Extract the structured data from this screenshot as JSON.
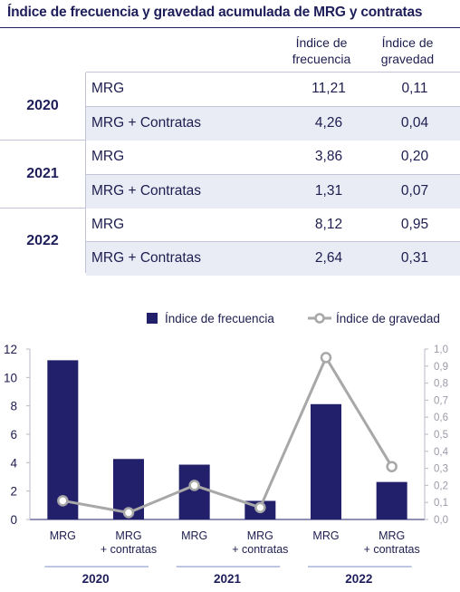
{
  "title": "Índice de frecuencia y gravedad acumulada de MRG y contratas",
  "table": {
    "headers": {
      "frecuencia": [
        "Índice de",
        "frecuencia"
      ],
      "gravedad": [
        "Índice de",
        "gravedad"
      ]
    },
    "groups": [
      {
        "year": "2020",
        "rows": [
          {
            "label": "MRG",
            "frecuencia": "11,21",
            "gravedad": "0,11"
          },
          {
            "label": "MRG + Contratas",
            "frecuencia": "4,26",
            "gravedad": "0,04"
          }
        ]
      },
      {
        "year": "2021",
        "rows": [
          {
            "label": "MRG",
            "frecuencia": "3,86",
            "gravedad": "0,20"
          },
          {
            "label": "MRG + Contratas",
            "frecuencia": "1,31",
            "gravedad": "0,07"
          }
        ]
      },
      {
        "year": "2022",
        "rows": [
          {
            "label": "MRG",
            "frecuencia": "8,12",
            "gravedad": "0,95"
          },
          {
            "label": "MRG + Contratas",
            "frecuencia": "2,64",
            "gravedad": "0,31"
          }
        ]
      }
    ]
  },
  "chart_data": {
    "type": "bar",
    "categories": [
      "MRG",
      "MRG\n+ contratas",
      "MRG",
      "MRG\n+ contratas",
      "MRG",
      "MRG\n+ contratas"
    ],
    "groups": [
      "2020",
      "2021",
      "2022"
    ],
    "series": [
      {
        "name": "Índice de frecuencia",
        "type": "bar",
        "axis": "left",
        "color": "#23206b",
        "values": [
          11.21,
          4.26,
          3.86,
          1.31,
          8.12,
          2.64
        ]
      },
      {
        "name": "Índice de gravedad",
        "type": "line",
        "axis": "right",
        "color": "#a8a8a8",
        "values": [
          0.11,
          0.04,
          0.2,
          0.07,
          0.95,
          0.31
        ]
      }
    ],
    "y_left": {
      "min": 0,
      "max": 12,
      "ticks": [
        "0",
        "2",
        "4",
        "6",
        "8",
        "10",
        "12"
      ]
    },
    "y_right": {
      "min": 0,
      "max": 1.0,
      "ticks": [
        "0,0",
        "0,1",
        "0,2",
        "0,3",
        "0,4",
        "0,5",
        "0,6",
        "0,7",
        "0,8",
        "0,9",
        "1,0"
      ]
    },
    "legend_position": "top-right",
    "grid": false
  }
}
